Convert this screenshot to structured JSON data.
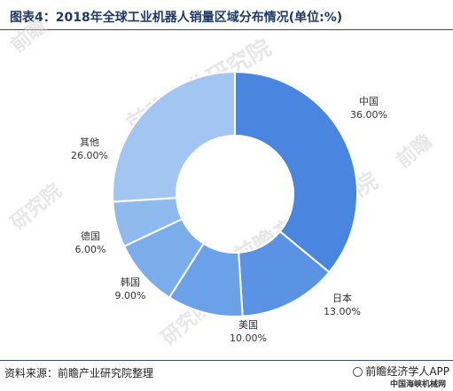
{
  "header": {
    "title": "图表4：2018年全球工业机器人销量区域分布情况(单位:%)"
  },
  "footer": {
    "source": "资料来源：前瞻产业研究院整理",
    "brand": "前瞻经济学人APP",
    "sub_brand": "中国海峡机械网"
  },
  "colors": {
    "slices": [
      "#4a86e0",
      "#5b93e4",
      "#6ba1e8",
      "#7cadeb",
      "#8fbaee",
      "#a2c6f1"
    ]
  },
  "chart_data": {
    "type": "pie",
    "donut": true,
    "categories": [
      "中国",
      "日本",
      "美国",
      "韩国",
      "德国",
      "其他"
    ],
    "values": [
      36.0,
      13.0,
      10.0,
      9.0,
      6.0,
      26.0
    ],
    "value_labels": [
      "36.00%",
      "13.00%",
      "10.00%",
      "9.00%",
      "6.00%",
      "26.00%"
    ],
    "start_angle_deg": 0,
    "direction": "clockwise",
    "legend": "none"
  }
}
